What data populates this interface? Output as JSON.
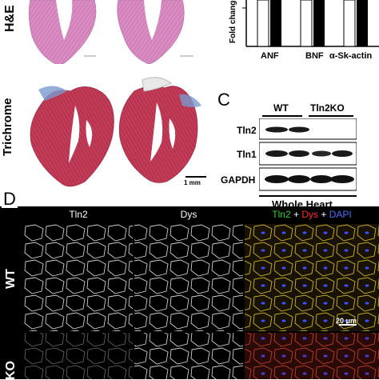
{
  "panelA": {
    "row_labels": [
      "H&E",
      "Trichrome"
    ],
    "scale_bar": "1 mm"
  },
  "panelB": {
    "ylabel": "Fold change",
    "categories": [
      "ANF",
      "BNF",
      "α-Sk-actin"
    ]
  },
  "panelC": {
    "letter": "C",
    "columns": [
      "WT",
      "Tln2KO"
    ],
    "rows": [
      "Tln2",
      "Tln1",
      "GAPDH"
    ],
    "footer": "Whole Heart"
  },
  "panelD": {
    "letter": "D",
    "channels": [
      "Tln2",
      "Dys"
    ],
    "merge_parts": [
      "Tln2",
      " + ",
      "Dys",
      " + ",
      "DAPI"
    ],
    "merge_colors": [
      "#2bd12b",
      "#ffffff",
      "#ff2b2b",
      "#ffffff",
      "#4a6bff"
    ],
    "rows": [
      "WT",
      "KO"
    ],
    "scale_bar": "20 μm"
  },
  "colors": {
    "he_pink": "#d98bc2",
    "trichrome_red": "#c23b56",
    "trichrome_blue": "#7a9ad0"
  }
}
